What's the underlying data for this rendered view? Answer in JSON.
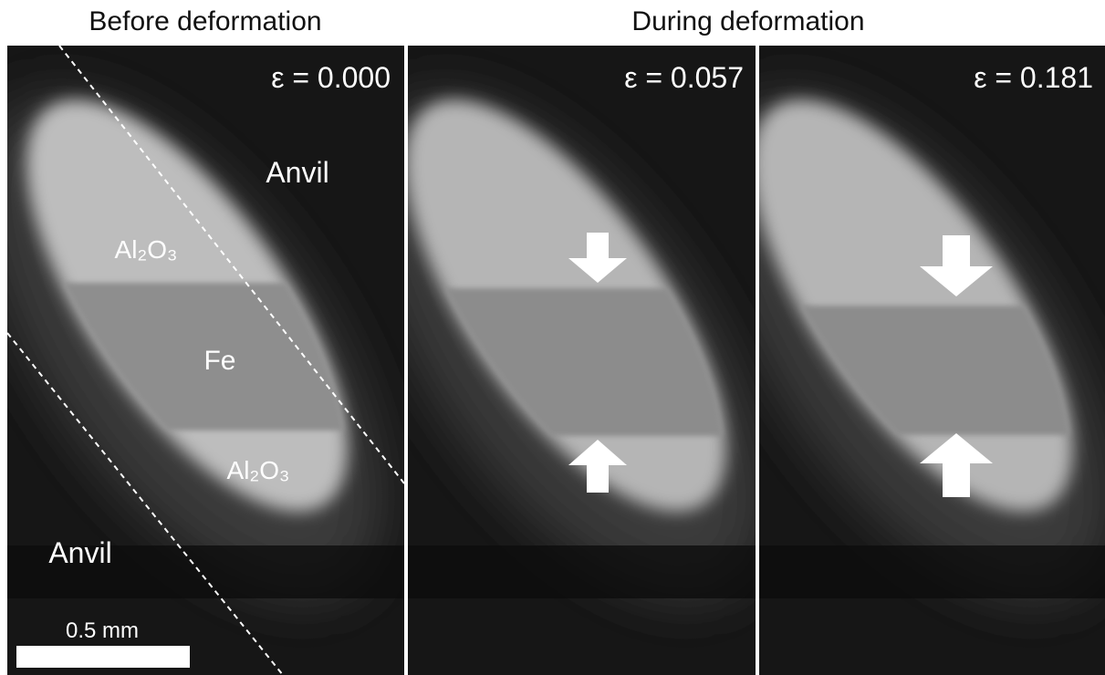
{
  "headings": [
    "Before deformation",
    "During deformation"
  ],
  "panels": [
    {
      "strain": "ε = 0.000"
    },
    {
      "strain": "ε = 0.057"
    },
    {
      "strain": "ε = 0.181"
    }
  ],
  "labels": {
    "anvil_top": "Anvil",
    "al2o3_top": "Al₂O₃",
    "fe": "Fe",
    "al2o3_bottom": "Al₂O₃",
    "anvil_bottom": "Anvil"
  },
  "scale_bar": "0.5 mm"
}
